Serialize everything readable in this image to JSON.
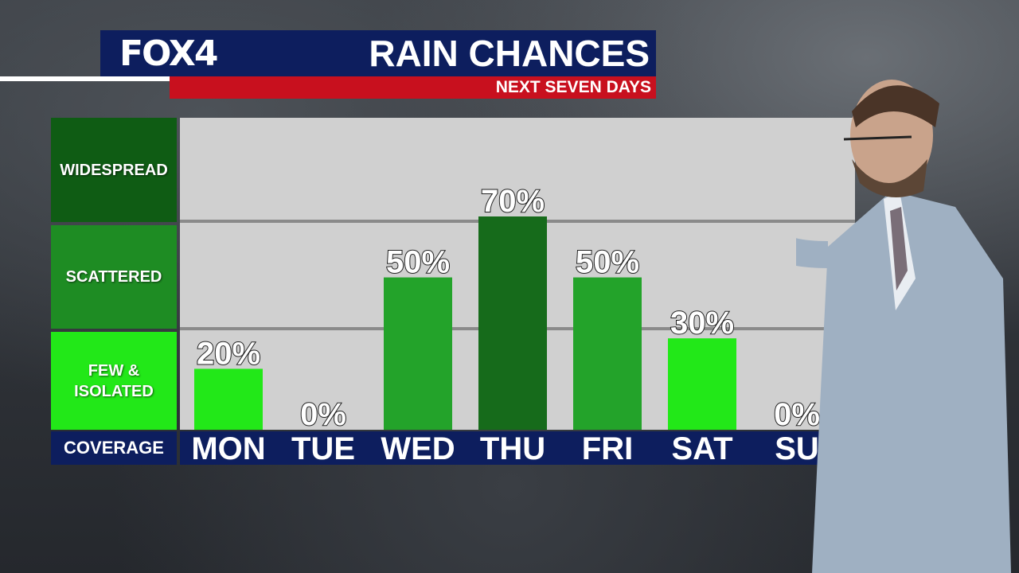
{
  "header": {
    "logo": "FOX4",
    "title": "RAIN CHANCES",
    "subtitle": "NEXT SEVEN DAYS"
  },
  "legend": {
    "levels": [
      "WIDESPREAD",
      "SCATTERED",
      "FEW & ISOLATED"
    ],
    "axis_label": "COVERAGE"
  },
  "colors": {
    "brand_blue": "#0d1e5e",
    "brand_red": "#c8101e",
    "few": "#22e818",
    "scattered": "#1e8c23",
    "widespread": "#166b1b"
  },
  "chart_data": {
    "type": "bar",
    "title": "RAIN CHANCES",
    "subtitle": "NEXT SEVEN DAYS",
    "categories": [
      "MON",
      "TUE",
      "WED",
      "THU",
      "FRI",
      "SAT",
      "SU"
    ],
    "values": [
      20,
      0,
      50,
      70,
      50,
      30,
      0
    ],
    "value_labels": [
      "20%",
      "0%",
      "50%",
      "70%",
      "50%",
      "30%",
      "0%"
    ],
    "ylim": [
      0,
      100
    ],
    "grid": true
  }
}
